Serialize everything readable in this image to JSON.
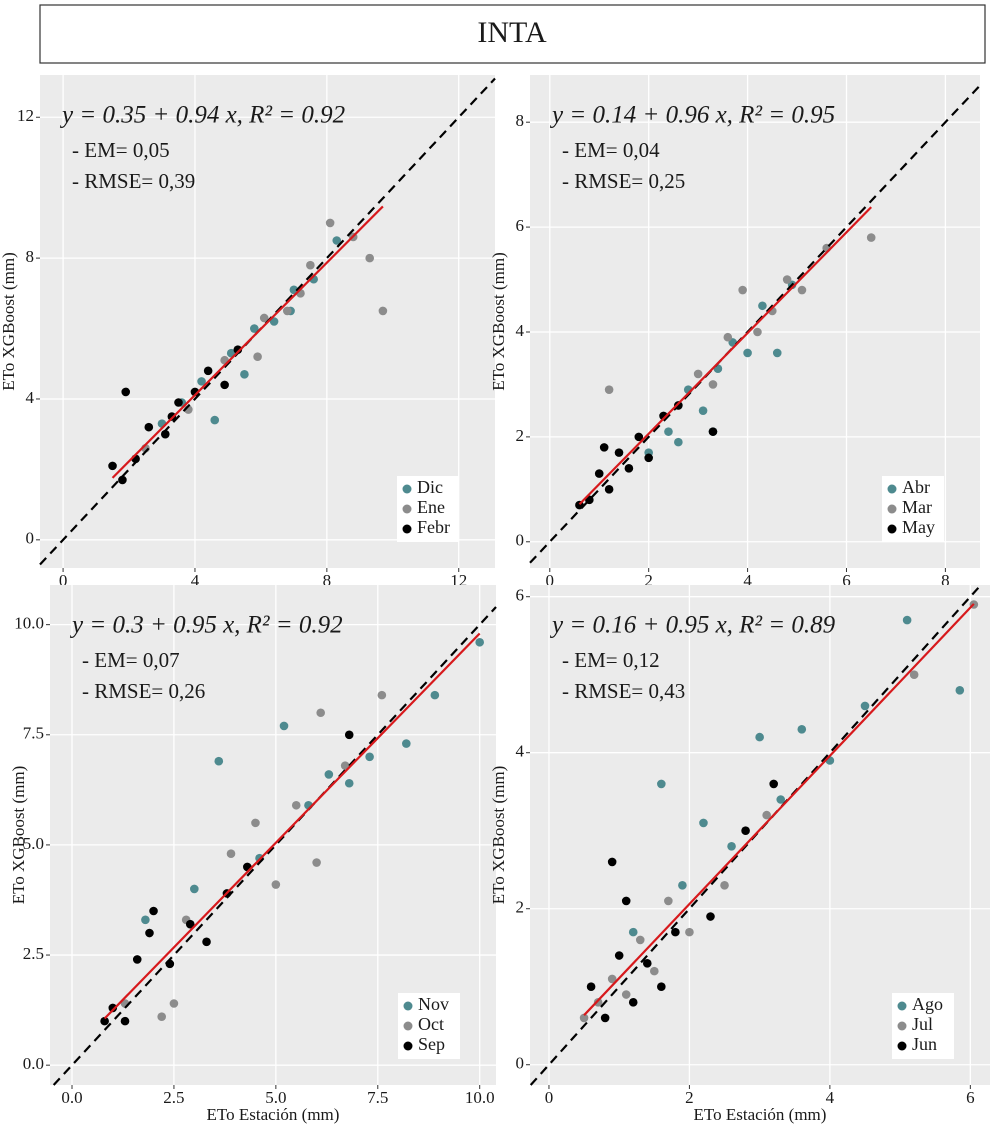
{
  "title": "INTA",
  "chart_data": [
    {
      "type": "scatter",
      "xlabel": "ETo Estación (mm)",
      "ylabel": "ETo XGBoost (mm)",
      "equation": "y = 0.35 + 0.94 x, R² = 0.92",
      "annotations": [
        "- EM= 0,05",
        "- RMSE= 0,39"
      ],
      "regression": {
        "intercept": 0.35,
        "slope": 0.94,
        "color": "#d7191c"
      },
      "identity_line": true,
      "xlim": [
        -0.7,
        13.1
      ],
      "ylim": [
        -0.8,
        13.2
      ],
      "xticks": [
        0,
        4,
        8,
        12
      ],
      "yticks": [
        0,
        4,
        8,
        12
      ],
      "grid": true,
      "legend": "lower right",
      "series": [
        {
          "name": "Dic",
          "color": "#4e8a8f",
          "x": [
            3.0,
            4.2,
            5.1,
            5.8,
            6.4,
            7.0,
            7.6,
            8.3,
            4.6,
            5.5,
            6.9,
            3.6
          ],
          "y": [
            3.3,
            4.5,
            5.3,
            6.0,
            6.2,
            7.1,
            7.4,
            8.5,
            3.4,
            4.7,
            6.5,
            3.9
          ]
        },
        {
          "name": "Ene",
          "color": "#8c8c8c",
          "x": [
            2.5,
            3.8,
            4.9,
            6.1,
            6.8,
            7.5,
            8.1,
            8.8,
            9.3,
            9.7,
            5.9,
            7.2
          ],
          "y": [
            2.6,
            3.7,
            5.1,
            6.3,
            6.5,
            7.8,
            9.0,
            8.6,
            8.0,
            6.5,
            5.2,
            7.0
          ]
        },
        {
          "name": "Febr",
          "color": "#000000",
          "x": [
            1.5,
            1.8,
            2.2,
            2.6,
            3.1,
            3.5,
            4.0,
            4.4,
            4.9,
            5.3,
            1.9,
            3.3
          ],
          "y": [
            2.1,
            1.7,
            2.3,
            3.2,
            3.0,
            3.9,
            4.2,
            4.8,
            4.4,
            5.4,
            4.2,
            3.5
          ]
        }
      ]
    },
    {
      "type": "scatter",
      "xlabel": "ETo Estación (mm)",
      "ylabel": "ETo XGBoost (mm)",
      "equation": "y = 0.14 + 0.96 x, R² = 0.95",
      "annotations": [
        "- EM= 0,04",
        "- RMSE= 0,25"
      ],
      "regression": {
        "intercept": 0.14,
        "slope": 0.96,
        "color": "#d7191c"
      },
      "identity_line": true,
      "xlim": [
        -0.4,
        8.7
      ],
      "ylim": [
        -0.5,
        8.9
      ],
      "xticks": [
        0,
        2,
        4,
        6,
        8
      ],
      "yticks": [
        0,
        2,
        4,
        6,
        8
      ],
      "grid": true,
      "legend": "lower right",
      "series": [
        {
          "name": "Abr",
          "color": "#4e8a8f",
          "x": [
            2.0,
            2.4,
            2.8,
            3.1,
            3.4,
            3.7,
            4.0,
            4.3,
            4.6,
            4.9,
            3.3,
            2.6
          ],
          "y": [
            1.7,
            2.1,
            2.9,
            2.5,
            3.3,
            3.8,
            3.6,
            4.5,
            3.6,
            4.9,
            2.1,
            1.9
          ]
        },
        {
          "name": "Mar",
          "color": "#8c8c8c",
          "x": [
            2.6,
            3.0,
            3.3,
            3.6,
            3.9,
            4.2,
            4.5,
            4.8,
            5.1,
            5.6,
            6.5,
            1.2
          ],
          "y": [
            2.6,
            3.2,
            3.0,
            3.9,
            4.8,
            4.0,
            4.4,
            5.0,
            4.8,
            5.6,
            5.8,
            2.9
          ]
        },
        {
          "name": "May",
          "color": "#000000",
          "x": [
            0.6,
            0.8,
            1.0,
            1.2,
            1.4,
            1.6,
            1.8,
            2.0,
            2.3,
            2.6,
            1.1,
            3.3
          ],
          "y": [
            0.7,
            0.8,
            1.3,
            1.0,
            1.7,
            1.4,
            2.0,
            1.6,
            2.4,
            2.6,
            1.8,
            2.1
          ]
        }
      ]
    },
    {
      "type": "scatter",
      "xlabel": "ETo Estación (mm)",
      "ylabel": "ETo XGBoost (mm)",
      "equation": "y = 0.3 + 0.95 x, R² = 0.92",
      "annotations": [
        "- EM= 0,07",
        "- RMSE= 0,26"
      ],
      "regression": {
        "intercept": 0.3,
        "slope": 0.95,
        "color": "#d7191c"
      },
      "identity_line": true,
      "xlim": [
        -0.54,
        10.4
      ],
      "ylim": [
        -0.45,
        10.9
      ],
      "xticks": [
        {
          "value": 0,
          "label": "0.0"
        },
        2.5,
        {
          "value": 5,
          "label": "5.0"
        },
        7.5,
        {
          "value": 10,
          "label": "10.0"
        }
      ],
      "yticks": [
        {
          "value": 0,
          "label": "0.0"
        },
        2.5,
        {
          "value": 5,
          "label": "5.0"
        },
        7.5,
        {
          "value": 10,
          "label": "10.0"
        }
      ],
      "grid": true,
      "legend": "lower right",
      "series": [
        {
          "name": "Nov",
          "color": "#4e8a8f",
          "x": [
            1.8,
            3.0,
            3.6,
            4.6,
            5.2,
            5.8,
            6.3,
            6.8,
            7.3,
            8.2,
            8.9,
            10.0
          ],
          "y": [
            3.3,
            4.0,
            6.9,
            4.7,
            7.7,
            5.9,
            6.6,
            6.4,
            7.0,
            7.3,
            8.4,
            9.6
          ]
        },
        {
          "name": "Oct",
          "color": "#8c8c8c",
          "x": [
            1.3,
            2.2,
            2.8,
            3.9,
            4.5,
            5.5,
            6.1,
            6.7,
            7.6,
            2.5,
            6.0,
            5.0
          ],
          "y": [
            1.4,
            1.1,
            3.3,
            4.8,
            5.5,
            5.9,
            8.0,
            6.8,
            8.4,
            1.4,
            4.6,
            4.1
          ]
        },
        {
          "name": "Sep",
          "color": "#000000",
          "x": [
            0.8,
            1.0,
            1.3,
            1.6,
            2.0,
            2.4,
            2.9,
            3.3,
            3.8,
            4.3,
            1.9,
            6.8
          ],
          "y": [
            1.0,
            1.3,
            1.0,
            2.4,
            3.5,
            2.3,
            3.2,
            2.8,
            3.9,
            4.5,
            3.0,
            7.5
          ]
        }
      ]
    },
    {
      "type": "scatter",
      "xlabel": "ETo Estación (mm)",
      "ylabel": "ETo XGBoost (mm)",
      "equation": "y = 0.16 + 0.95 x, R² = 0.89",
      "annotations": [
        "- EM= 0,12",
        "- RMSE= 0,43"
      ],
      "regression": {
        "intercept": 0.16,
        "slope": 0.95,
        "color": "#d7191c"
      },
      "identity_line": true,
      "xlim": [
        -0.27,
        6.28
      ],
      "ylim": [
        -0.26,
        6.15
      ],
      "xticks": [
        0,
        2,
        4,
        6
      ],
      "yticks": [
        0,
        2,
        4,
        6
      ],
      "grid": true,
      "legend": "lower right",
      "series": [
        {
          "name": "Ago",
          "color": "#4e8a8f",
          "x": [
            1.2,
            1.6,
            1.9,
            2.2,
            2.6,
            3.0,
            3.3,
            3.6,
            4.0,
            4.5,
            5.1,
            5.85
          ],
          "y": [
            1.7,
            3.6,
            2.3,
            3.1,
            2.8,
            4.2,
            3.4,
            4.3,
            3.9,
            4.6,
            5.7,
            4.8
          ]
        },
        {
          "name": "Jul",
          "color": "#8c8c8c",
          "x": [
            0.5,
            0.7,
            0.9,
            1.1,
            1.3,
            1.5,
            1.7,
            2.0,
            2.5,
            3.1,
            5.2,
            6.05
          ],
          "y": [
            0.6,
            0.8,
            1.1,
            0.9,
            1.6,
            1.2,
            2.1,
            1.7,
            2.3,
            3.2,
            5.0,
            5.9
          ]
        },
        {
          "name": "Jun",
          "color": "#000000",
          "x": [
            0.6,
            0.8,
            1.0,
            1.2,
            0.9,
            1.4,
            1.8,
            2.3,
            2.8,
            3.2,
            1.1,
            1.6
          ],
          "y": [
            1.0,
            0.6,
            1.4,
            0.8,
            2.6,
            1.3,
            1.7,
            1.9,
            3.0,
            3.6,
            2.1,
            1.0
          ]
        }
      ]
    }
  ]
}
